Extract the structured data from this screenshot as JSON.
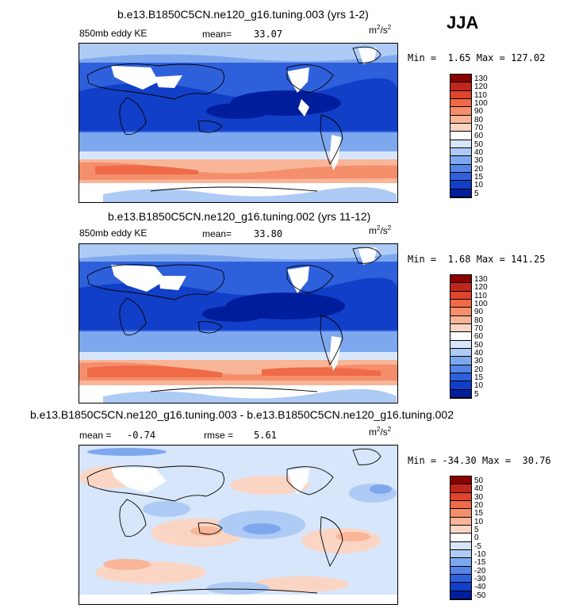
{
  "season": "JJA",
  "panels": [
    {
      "title": "b.e13.B1850C5CN.ne120_g16.tuning.003 (yrs 1-2)",
      "left_label": "850mb eddy KE",
      "stat1_label": "mean=",
      "stat1_value": "33.07",
      "units_base": "m",
      "units_exp1": "2",
      "units_mid": "/s",
      "units_exp2": "2",
      "minmax_min_label": "Min =",
      "minmax_min": "1.65",
      "minmax_max_label": "Max =",
      "minmax_max": "127.02",
      "colorbar": [
        "130",
        "120",
        "110",
        "100",
        "90",
        "80",
        "70",
        "60",
        "50",
        "40",
        "30",
        "20",
        "15",
        "10",
        "5"
      ],
      "colors": [
        "#8b0000",
        "#c0271c",
        "#e0452c",
        "#ef6a47",
        "#f58e6b",
        "#f8b598",
        "#fbd5c4",
        "#ffffff",
        "#d7e6fa",
        "#aecbf5",
        "#7ea8ee",
        "#5585e6",
        "#2f60dc",
        "#123fc7",
        "#001e9c"
      ]
    },
    {
      "title": "b.e13.B1850C5CN.ne120_g16.tuning.002 (yrs 11-12)",
      "left_label": "850mb eddy KE",
      "stat1_label": "mean=",
      "stat1_value": "33.80",
      "units_base": "m",
      "units_exp1": "2",
      "units_mid": "/s",
      "units_exp2": "2",
      "minmax_min_label": "Min =",
      "minmax_min": "1.68",
      "minmax_max_label": "Max =",
      "minmax_max": "141.25",
      "colorbar": [
        "130",
        "120",
        "110",
        "100",
        "90",
        "80",
        "70",
        "60",
        "50",
        "40",
        "30",
        "20",
        "15",
        "10",
        "5"
      ],
      "colors": [
        "#8b0000",
        "#c0271c",
        "#e0452c",
        "#ef6a47",
        "#f58e6b",
        "#f8b598",
        "#fbd5c4",
        "#ffffff",
        "#d7e6fa",
        "#aecbf5",
        "#7ea8ee",
        "#5585e6",
        "#2f60dc",
        "#123fc7",
        "#001e9c"
      ]
    },
    {
      "title": "b.e13.B1850C5CN.ne120_g16.tuning.003 - b.e13.B1850C5CN.ne120_g16.tuning.002",
      "stat1_label": "mean =",
      "stat1_value": "-0.74",
      "stat2_label": "rmse =",
      "stat2_value": "5.61",
      "units_base": "m",
      "units_exp1": "2",
      "units_mid": "/s",
      "units_exp2": "2",
      "minmax_min_label": "Min =",
      "minmax_min": "-34.30",
      "minmax_max_label": "Max =",
      "minmax_max": "30.76",
      "colorbar": [
        "50",
        "40",
        "30",
        "20",
        "15",
        "10",
        "5",
        "0",
        "-5",
        "-10",
        "-15",
        "-20",
        "-30",
        "-40",
        "-50"
      ],
      "colors": [
        "#8b0000",
        "#c0271c",
        "#e0452c",
        "#ef6a47",
        "#f58e6b",
        "#f8b598",
        "#fbd5c4",
        "#ffffff",
        "#d7e6fa",
        "#aecbf5",
        "#7ea8ee",
        "#5585e6",
        "#2f60dc",
        "#123fc7",
        "#001e9c"
      ]
    }
  ]
}
